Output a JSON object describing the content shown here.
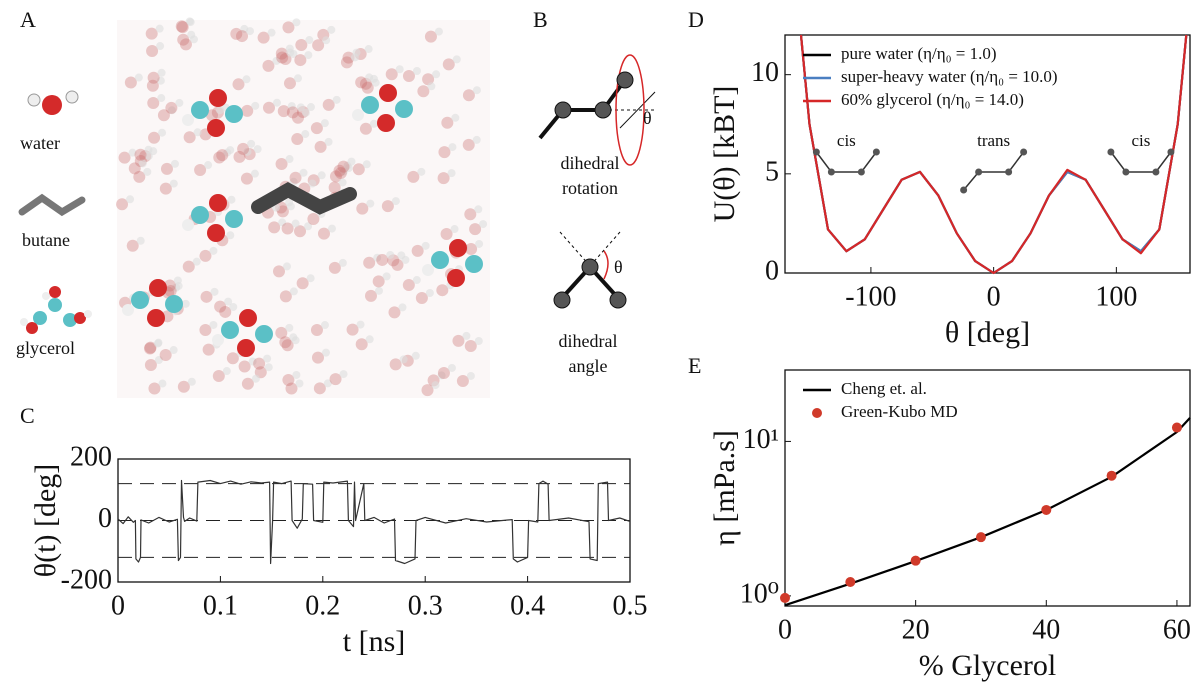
{
  "figure": {
    "panel_labels": [
      "A",
      "B",
      "C",
      "D",
      "E"
    ],
    "molecules": [
      "water",
      "butane",
      "glycerol"
    ],
    "rotation_label": [
      "dihedral",
      "rotation"
    ],
    "angle_label": [
      "dihedral",
      "angle"
    ],
    "angle_symbol": "θ"
  },
  "chart_data": [
    {
      "type": "line",
      "xlabel": "t [ns]",
      "ylabel": "θ(t) [deg]",
      "xlim": [
        0,
        0.5
      ],
      "xticks": [
        0,
        0.1,
        0.2,
        0.3,
        0.4,
        0.5
      ],
      "ylim": [
        -200,
        200
      ],
      "yticks": [
        -200,
        0,
        200
      ],
      "reference_lines": [
        -120,
        0,
        120
      ],
      "color": "#333333",
      "x": [
        0,
        0.005,
        0.01,
        0.015,
        0.017,
        0.0175,
        0.02,
        0.022,
        0.0225,
        0.03,
        0.04,
        0.05,
        0.058,
        0.059,
        0.061,
        0.062,
        0.064,
        0.065,
        0.07,
        0.077,
        0.078,
        0.09,
        0.1,
        0.11,
        0.12,
        0.13,
        0.14,
        0.148,
        0.149,
        0.151,
        0.152,
        0.16,
        0.169,
        0.17,
        0.175,
        0.18,
        0.181,
        0.19,
        0.191,
        0.2,
        0.201,
        0.21,
        0.224,
        0.225,
        0.23,
        0.231,
        0.232,
        0.24,
        0.241,
        0.25,
        0.26,
        0.27,
        0.271,
        0.28,
        0.29,
        0.291,
        0.3,
        0.32,
        0.34,
        0.36,
        0.385,
        0.386,
        0.39,
        0.4,
        0.401,
        0.41,
        0.411,
        0.415,
        0.42,
        0.421,
        0.44,
        0.46,
        0.461,
        0.468,
        0.469,
        0.478,
        0.479,
        0.49,
        0.5
      ],
      "values": [
        5,
        -10,
        12,
        -6,
        0,
        -125,
        -135,
        -120,
        2,
        -8,
        10,
        -5,
        4,
        -130,
        -120,
        130,
        10,
        -3,
        8,
        -2,
        125,
        130,
        120,
        128,
        118,
        126,
        122,
        125,
        -140,
        0,
        125,
        120,
        128,
        0,
        -25,
        5,
        120,
        118,
        0,
        -6,
        125,
        122,
        128,
        0,
        -20,
        125,
        0,
        120,
        0,
        10,
        -8,
        5,
        -130,
        -140,
        -125,
        0,
        10,
        -8,
        6,
        -5,
        3,
        -125,
        -135,
        -120,
        0,
        -5,
        120,
        128,
        118,
        0,
        8,
        -4,
        -125,
        -130,
        120,
        125,
        0,
        8,
        -3
      ]
    },
    {
      "type": "line",
      "xlabel": "θ [deg]",
      "ylabel": "U(θ) [kBT]",
      "xlim": [
        -170,
        160
      ],
      "xticks": [
        -100,
        0,
        100
      ],
      "ylim": [
        0,
        12
      ],
      "yticks": [
        0,
        5,
        10
      ],
      "legend": "upper left",
      "annotations": [
        "cis",
        "trans",
        "cis"
      ],
      "x": [
        -157,
        -150,
        -135,
        -120,
        -105,
        -90,
        -75,
        -60,
        -45,
        -30,
        -15,
        0,
        15,
        30,
        45,
        60,
        75,
        90,
        105,
        120,
        135,
        150,
        157
      ],
      "series": [
        {
          "name": "pure water (η/η₀ = 1.0)",
          "color": "#000000",
          "values": [
            12,
            7.5,
            2.2,
            1.1,
            1.7,
            3.2,
            4.7,
            5.1,
            3.9,
            2.0,
            0.6,
            0,
            0.6,
            2.0,
            3.9,
            5.1,
            4.7,
            3.2,
            1.7,
            1.1,
            2.2,
            7.5,
            12
          ]
        },
        {
          "name": "super-heavy water (η/η₀ = 10.0)",
          "color": "#4a7fc1",
          "values": [
            12,
            7.5,
            2.2,
            1.1,
            1.7,
            3.2,
            4.7,
            5.1,
            3.9,
            2.0,
            0.6,
            0,
            0.6,
            2.0,
            3.9,
            5.1,
            4.7,
            3.2,
            1.7,
            1.1,
            2.2,
            7.5,
            12
          ]
        },
        {
          "name": "60% glycerol (η/η₀ = 14.0)",
          "color": "#d62728",
          "values": [
            12,
            7.5,
            2.2,
            1.1,
            1.7,
            3.2,
            4.7,
            5.1,
            3.9,
            2.0,
            0.6,
            0,
            0.6,
            2.0,
            3.9,
            5.2,
            4.7,
            3.2,
            1.7,
            1.0,
            2.2,
            7.5,
            12
          ]
        }
      ]
    },
    {
      "type": "line",
      "xlabel": "% Glycerol",
      "ylabel": "η [mPa.s]",
      "xlim": [
        0,
        62
      ],
      "xticks": [
        0,
        20,
        40,
        60
      ],
      "yscale": "log",
      "ylim": [
        0.86,
        29
      ],
      "yticks": [
        {
          "value": 1,
          "label": "10⁰"
        },
        {
          "value": 10,
          "label": "10¹"
        }
      ],
      "legend": "upper left",
      "series": [
        {
          "name": "Cheng et. al.",
          "color": "#000000",
          "mode": "line",
          "x": [
            0,
            10,
            20,
            30,
            40,
            50,
            60,
            62
          ],
          "values": [
            0.87,
            1.2,
            1.68,
            2.4,
            3.6,
            5.9,
            11.5,
            14.2
          ]
        },
        {
          "name": "Green-Kubo MD",
          "color": "#d03a2a",
          "mode": "markers",
          "x": [
            0,
            10,
            20,
            30,
            40,
            50,
            60
          ],
          "values": [
            0.97,
            1.23,
            1.69,
            2.4,
            3.6,
            6.0,
            12.3
          ]
        }
      ]
    }
  ]
}
